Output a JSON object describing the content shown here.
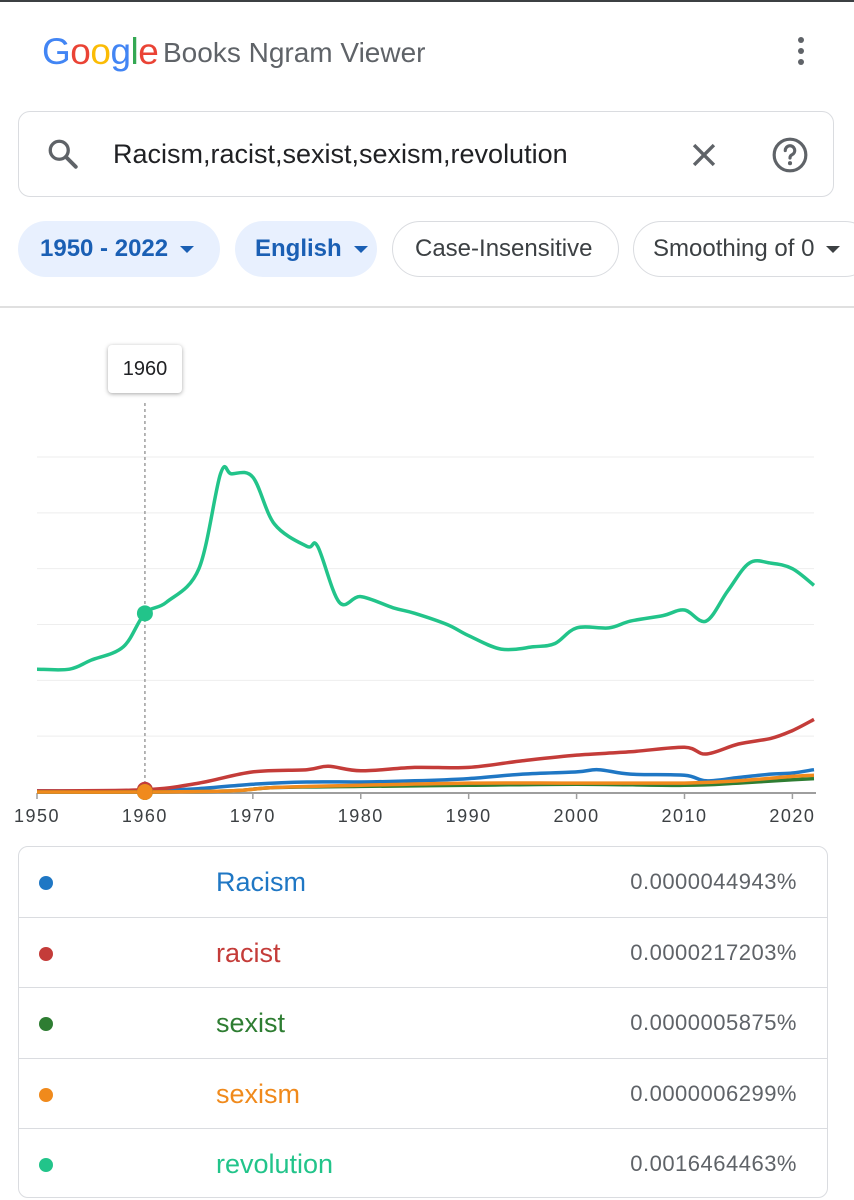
{
  "app": {
    "logo_letters": [
      {
        "ch": "G",
        "color": "#4285F4"
      },
      {
        "ch": "o",
        "color": "#EA4335"
      },
      {
        "ch": "o",
        "color": "#FBBC05"
      },
      {
        "ch": "g",
        "color": "#4285F4"
      },
      {
        "ch": "l",
        "color": "#34A853"
      },
      {
        "ch": "e",
        "color": "#EA4335"
      }
    ],
    "title": "Books Ngram Viewer"
  },
  "search": {
    "value": "Racism,racist,sexist,sexism,revolution",
    "icons": [
      "search-icon",
      "clear-icon",
      "help-icon"
    ]
  },
  "filters": {
    "year_range": "1950 - 2022",
    "language": "English",
    "case": "Case-Insensitive",
    "smoothing": "Smoothing of 0"
  },
  "tooltip": {
    "year": "1960"
  },
  "chart_data": {
    "type": "line",
    "x_ticks": [
      "1950",
      "1960",
      "1970",
      "1980",
      "1990",
      "2000",
      "2010",
      "2020"
    ],
    "xlim": [
      1950,
      2022
    ],
    "y_unit": "percent",
    "ylim": [
      0,
      0.003
    ],
    "grid": true,
    "hover_year": 1960,
    "series": [
      {
        "name": "Racism",
        "color": "#1f77c4",
        "points": [
          [
            1950,
            1e-05
          ],
          [
            1960,
            1e-05
          ],
          [
            1965,
            3e-05
          ],
          [
            1970,
            7e-05
          ],
          [
            1975,
            9e-05
          ],
          [
            1980,
            9e-05
          ],
          [
            1985,
            0.0001
          ],
          [
            1990,
            0.00012
          ],
          [
            1995,
            0.00016
          ],
          [
            2000,
            0.00018
          ],
          [
            2002,
            0.0002
          ],
          [
            2005,
            0.00016
          ],
          [
            2010,
            0.00015
          ],
          [
            2012,
            0.0001
          ],
          [
            2015,
            0.00013
          ],
          [
            2018,
            0.00016
          ],
          [
            2020,
            0.00017
          ],
          [
            2022,
            0.0002
          ]
        ]
      },
      {
        "name": "racist",
        "color": "#c43c39",
        "points": [
          [
            1950,
            1e-05
          ],
          [
            1960,
            2e-05
          ],
          [
            1965,
            8e-05
          ],
          [
            1970,
            0.00018
          ],
          [
            1975,
            0.0002
          ],
          [
            1977,
            0.00023
          ],
          [
            1980,
            0.00019
          ],
          [
            1985,
            0.00022
          ],
          [
            1990,
            0.00022
          ],
          [
            1995,
            0.00028
          ],
          [
            2000,
            0.00033
          ],
          [
            2005,
            0.00036
          ],
          [
            2010,
            0.0004
          ],
          [
            2012,
            0.00034
          ],
          [
            2015,
            0.00043
          ],
          [
            2018,
            0.00048
          ],
          [
            2020,
            0.00055
          ],
          [
            2022,
            0.00065
          ]
        ]
      },
      {
        "name": "sexist",
        "color": "#2e7d32",
        "points": [
          [
            1950,
            0
          ],
          [
            1960,
            0
          ],
          [
            1968,
            1e-05
          ],
          [
            1972,
            4e-05
          ],
          [
            1980,
            5e-05
          ],
          [
            1990,
            6e-05
          ],
          [
            2000,
            7e-05
          ],
          [
            2010,
            6e-05
          ],
          [
            2015,
            8e-05
          ],
          [
            2020,
            0.00011
          ],
          [
            2022,
            0.00012
          ]
        ]
      },
      {
        "name": "sexism",
        "color": "#f08a1c",
        "points": [
          [
            1950,
            0
          ],
          [
            1960,
            0
          ],
          [
            1968,
            1e-05
          ],
          [
            1972,
            4e-05
          ],
          [
            1980,
            6e-05
          ],
          [
            1990,
            8e-05
          ],
          [
            2000,
            8e-05
          ],
          [
            2010,
            8e-05
          ],
          [
            2015,
            0.0001
          ],
          [
            2020,
            0.00014
          ],
          [
            2022,
            0.00015
          ]
        ]
      },
      {
        "name": "revolution",
        "color": "#22c48a",
        "points": [
          [
            1950,
            0.0011
          ],
          [
            1953,
            0.0011
          ],
          [
            1955,
            0.00118
          ],
          [
            1958,
            0.0013
          ],
          [
            1960,
            0.0016
          ],
          [
            1962,
            0.0017
          ],
          [
            1965,
            0.002
          ],
          [
            1967,
            0.00285
          ],
          [
            1968,
            0.00285
          ],
          [
            1970,
            0.00282
          ],
          [
            1972,
            0.0024
          ],
          [
            1975,
            0.0022
          ],
          [
            1976,
            0.0022
          ],
          [
            1978,
            0.0017
          ],
          [
            1980,
            0.00175
          ],
          [
            1983,
            0.00165
          ],
          [
            1985,
            0.0016
          ],
          [
            1988,
            0.0015
          ],
          [
            1990,
            0.0014
          ],
          [
            1993,
            0.00128
          ],
          [
            1996,
            0.0013
          ],
          [
            1998,
            0.00133
          ],
          [
            2000,
            0.00147
          ],
          [
            2003,
            0.00147
          ],
          [
            2005,
            0.00153
          ],
          [
            2008,
            0.00158
          ],
          [
            2010,
            0.00163
          ],
          [
            2012,
            0.00153
          ],
          [
            2014,
            0.0018
          ],
          [
            2016,
            0.00205
          ],
          [
            2018,
            0.00205
          ],
          [
            2020,
            0.002
          ],
          [
            2022,
            0.00185
          ]
        ]
      }
    ]
  },
  "legend": [
    {
      "name": "Racism",
      "value": "0.0000044943%",
      "color": "#1f77c4"
    },
    {
      "name": "racist",
      "value": "0.0000217203%",
      "color": "#c43c39"
    },
    {
      "name": "sexist",
      "value": "0.0000005875%",
      "color": "#2e7d32"
    },
    {
      "name": "sexism",
      "value": "0.0000006299%",
      "color": "#f08a1c"
    },
    {
      "name": "revolution",
      "value": "0.0016464463%",
      "color": "#22c48a"
    }
  ]
}
